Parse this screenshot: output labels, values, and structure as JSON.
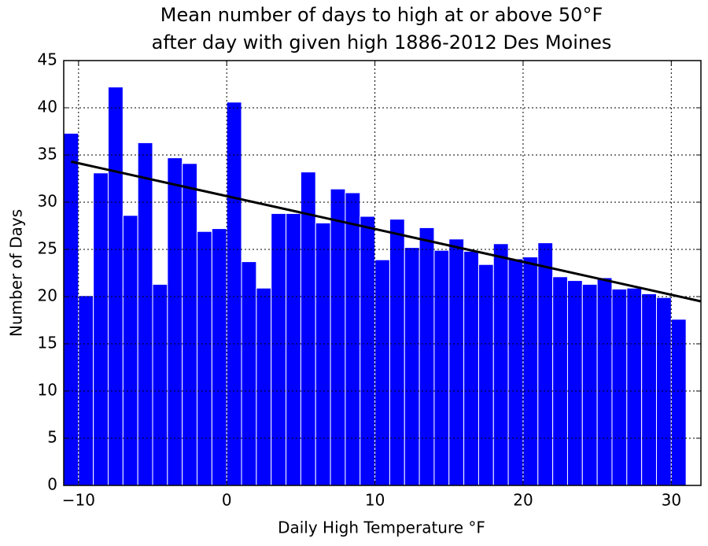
{
  "chart_data": {
    "type": "histogram",
    "title": [
      "Mean number of days to high at or above 50°F",
      "after day with given high 1886-2012 Des Moines"
    ],
    "xlabel": "Daily High Temperature °F",
    "ylabel": "Number of Days",
    "bins": [
      -11,
      -10,
      -9,
      -8,
      -7,
      -6,
      -5,
      -4,
      -3,
      -2,
      -1,
      0,
      1,
      2,
      3,
      4,
      5,
      6,
      7,
      8,
      9,
      10,
      11,
      12,
      13,
      14,
      15,
      16,
      17,
      18,
      19,
      20,
      21,
      22,
      23,
      24,
      25,
      26,
      27,
      28,
      29,
      30,
      31
    ],
    "values": [
      37.3,
      20.1,
      33.1,
      42.2,
      28.6,
      36.3,
      21.3,
      34.7,
      34.1,
      26.9,
      27.2,
      40.6,
      23.7,
      20.9,
      28.8,
      28.8,
      33.2,
      27.8,
      31.4,
      31.0,
      28.5,
      23.9,
      28.2,
      25.2,
      27.3,
      24.9,
      26.1,
      24.8,
      23.4,
      25.6,
      24.0,
      24.2,
      25.7,
      22.1,
      21.7,
      21.3,
      22.0,
      20.8,
      20.9,
      20.3,
      19.9,
      17.6
    ],
    "color": "#0000ff",
    "trend": {
      "x": [
        -10.5,
        32
      ],
      "values": [
        34.3,
        19.5
      ],
      "color": "#000000"
    },
    "xlim": [
      -11,
      32
    ],
    "ylim": [
      0,
      45
    ],
    "xticks": [
      {
        "value": -10,
        "label": "−10"
      },
      0,
      10,
      20,
      30
    ],
    "yticks": [
      0,
      5,
      10,
      15,
      20,
      25,
      30,
      35,
      40,
      45
    ],
    "grid": true
  }
}
